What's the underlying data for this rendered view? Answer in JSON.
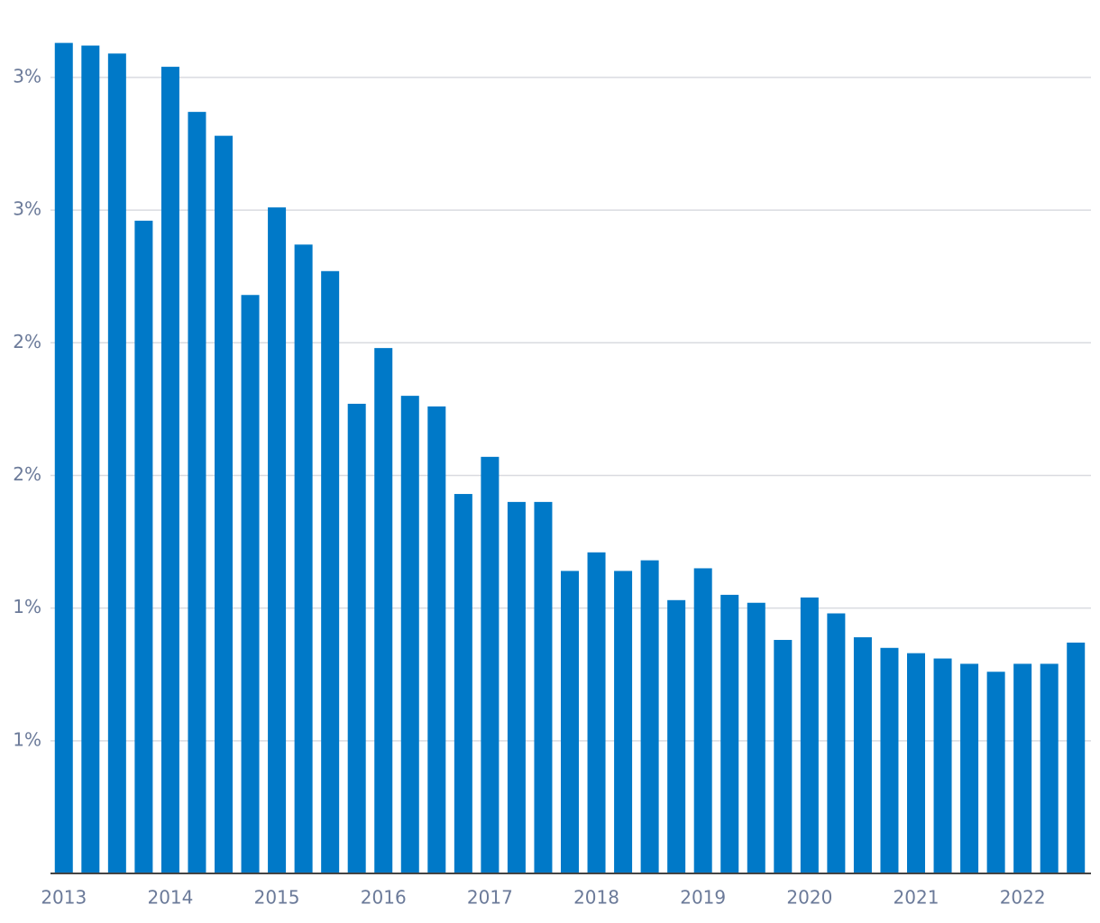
{
  "chart_data": {
    "type": "bar",
    "categories": [
      "2013",
      null,
      null,
      null,
      "2014",
      null,
      null,
      null,
      "2015",
      null,
      null,
      null,
      "2016",
      null,
      null,
      null,
      "2017",
      null,
      null,
      null,
      "2018",
      null,
      null,
      null,
      "2019",
      null,
      null,
      null,
      "2020",
      null,
      null,
      null,
      "2021",
      null,
      null,
      null,
      "2022",
      null,
      null
    ],
    "values": [
      3.13,
      3.12,
      3.09,
      2.46,
      3.04,
      2.87,
      2.78,
      2.18,
      2.51,
      2.37,
      2.27,
      1.77,
      1.98,
      1.8,
      1.76,
      1.43,
      1.57,
      1.4,
      1.4,
      1.14,
      1.21,
      1.14,
      1.18,
      1.03,
      1.15,
      1.05,
      1.02,
      0.88,
      1.04,
      0.98,
      0.89,
      0.85,
      0.83,
      0.81,
      0.79,
      0.76,
      0.79,
      0.79,
      0.87
    ],
    "color": "#0079c8",
    "ylim": [
      0,
      3.2
    ],
    "yticks": [
      {
        "value": 0.5,
        "label": "1%"
      },
      {
        "value": 1,
        "label": "1%"
      },
      {
        "value": 1.5,
        "label": "2%"
      },
      {
        "value": 2,
        "label": "2%"
      },
      {
        "value": 2.5,
        "label": "3%"
      },
      {
        "value": 3,
        "label": "3%"
      }
    ],
    "grid": true
  }
}
